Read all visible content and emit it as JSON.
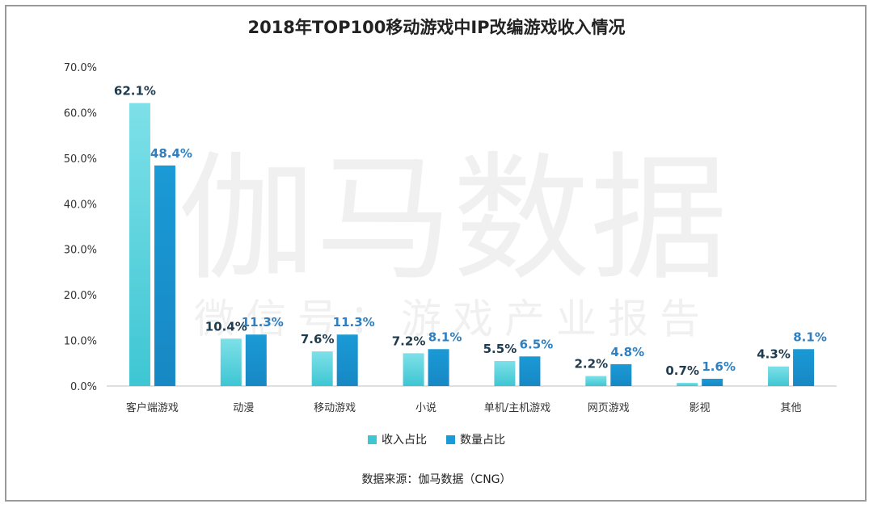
{
  "chart_data": {
    "type": "bar",
    "title": "2018年TOP100移动游戏中IP改编游戏收入情况",
    "categories": [
      "客户端游戏",
      "动漫",
      "移动游戏",
      "小说",
      "单机/主机游戏",
      "网页游戏",
      "影视",
      "其他"
    ],
    "series": [
      {
        "name": "收入占比",
        "values": [
          62.1,
          10.4,
          7.6,
          7.2,
          5.5,
          2.2,
          0.7,
          4.3
        ],
        "color": "#3ec6d3",
        "label_color": "#1f3b4d"
      },
      {
        "name": "数量占比",
        "values": [
          48.4,
          11.3,
          11.3,
          8.1,
          6.5,
          4.8,
          1.6,
          8.1
        ],
        "color": "#1a9ad6",
        "label_color": "#2f7fc1"
      }
    ],
    "ylim": [
      0,
      70
    ],
    "yticks": [
      "0.0%",
      "10.0%",
      "20.0%",
      "30.0%",
      "40.0%",
      "50.0%",
      "60.0%",
      "70.0%"
    ],
    "data_labels": [
      [
        "62.1%",
        "10.4%",
        "7.6%",
        "7.2%",
        "5.5%",
        "2.2%",
        "0.7%",
        "4.3%"
      ],
      [
        "48.4%",
        "11.3%",
        "11.3%",
        "8.1%",
        "6.5%",
        "4.8%",
        "1.6%",
        "8.1%"
      ]
    ],
    "xlabel": "",
    "ylabel": "",
    "grid": false,
    "legend_position": "bottom"
  },
  "watermark": {
    "main": "伽马数据",
    "sub": "微信号：游戏产业报告"
  },
  "source": "数据来源：伽马数据（CNG）"
}
